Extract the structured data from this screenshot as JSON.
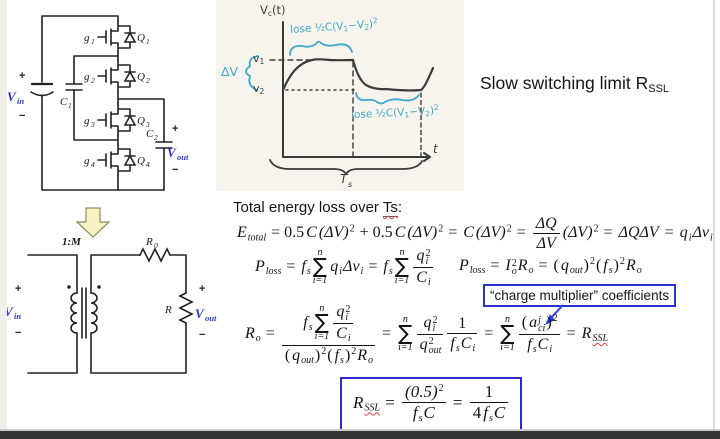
{
  "slide": {
    "title": {
      "text": "Slow switching limit ",
      "r": "R",
      "sub": "SSL"
    },
    "heading": {
      "pre": "Total energy loss over ",
      "ts": "Ts",
      "colon": ":"
    },
    "charge_box_label": "“charge multiplier” coefficients"
  },
  "sym": {
    "plus": "+",
    "minus": "−",
    "v": "V",
    "in": "in",
    "out": "out"
  },
  "sc": {
    "g": "g",
    "q": "Q",
    "c": "C",
    "n": [
      "1",
      "2",
      "3",
      "4"
    ]
  },
  "model": {
    "ratio": "1:M",
    "r": "R",
    "r0sub": "0",
    "rload": "R"
  },
  "sketch": {
    "vc_v": "V",
    "vc_sub": "c",
    "vc_rest": "(t)",
    "v": "v",
    "n1": "1",
    "n2": "2",
    "dv": "ΔV",
    "lose_pre": "lose ½C(V",
    "lose_mid": "−V",
    "lose_close": ")",
    "lose_sup": "2",
    "ts": "T",
    "ts_sub": "s",
    "t": "t"
  },
  "equations": {
    "eq_total": [
      {
        "k": "sb",
        "b": "E",
        "s": "total"
      },
      {
        "k": "r",
        "v": " = 0.5"
      },
      {
        "k": "i",
        "v": "C"
      },
      {
        "k": "sp",
        "b": "(ΔV)",
        "s": "2"
      },
      {
        "k": "r",
        "v": " + 0.5"
      },
      {
        "k": "i",
        "v": "C"
      },
      {
        "k": "sp",
        "b": "(ΔV)",
        "s": "2"
      },
      {
        "k": "r",
        "v": " = "
      },
      {
        "k": "i",
        "v": "C"
      },
      {
        "k": "sp",
        "b": "(ΔV)",
        "s": "2"
      },
      {
        "k": "r",
        "v": " = "
      },
      {
        "k": "f",
        "n": [
          {
            "k": "i",
            "v": "ΔQ"
          }
        ],
        "d": [
          {
            "k": "i",
            "v": "ΔV"
          }
        ]
      },
      {
        "k": "sp",
        "b": "(ΔV)",
        "s": "2"
      },
      {
        "k": "r",
        "v": " = "
      },
      {
        "k": "i",
        "v": "ΔQΔV"
      },
      {
        "k": "r",
        "v": " = "
      },
      {
        "k": "sb",
        "b": "q",
        "s": "i"
      },
      {
        "k": "sb",
        "b": "Δv",
        "s": "i"
      }
    ],
    "eq_ploss_a": [
      {
        "k": "sb",
        "b": "P",
        "s": "loss"
      },
      {
        "k": "r",
        "v": " = "
      },
      {
        "k": "sb",
        "b": "f",
        "s": "s"
      },
      {
        "k": "sum",
        "t": "n",
        "b": "i=1"
      },
      {
        "k": "sb",
        "b": "q",
        "s": "i"
      },
      {
        "k": "sb",
        "b": "Δv",
        "s": "i"
      },
      {
        "k": "r",
        "v": " = "
      },
      {
        "k": "sb",
        "b": "f",
        "s": "s"
      },
      {
        "k": "sum",
        "t": "n",
        "b": "i=1"
      },
      {
        "k": "f",
        "n": [
          {
            "k": "bs",
            "b": "q",
            "sub": "i",
            "sup": "2"
          }
        ],
        "d": [
          {
            "k": "sb",
            "b": "C",
            "s": "i"
          }
        ]
      }
    ],
    "eq_ploss_b": [
      {
        "k": "sb",
        "b": "P",
        "s": "loss"
      },
      {
        "k": "r",
        "v": " = "
      },
      {
        "k": "bs",
        "b": "I",
        "sub": "o",
        "sup": "2"
      },
      {
        "k": "sb",
        "b": "R",
        "s": "o"
      },
      {
        "k": "r",
        "v": " = "
      },
      {
        "k": "g",
        "b": [
          {
            "k": "r",
            "v": "("
          },
          {
            "k": "sb",
            "b": "q",
            "s": "out"
          },
          {
            "k": "r",
            "v": ")"
          }
        ],
        "s": "2"
      },
      {
        "k": "g",
        "b": [
          {
            "k": "r",
            "v": "("
          },
          {
            "k": "sb",
            "b": "f",
            "s": "s"
          },
          {
            "k": "r",
            "v": ")"
          }
        ],
        "s": "2"
      },
      {
        "k": "sb",
        "b": "R",
        "s": "o"
      }
    ],
    "eq_ro": [
      {
        "k": "sb",
        "b": "R",
        "s": "o"
      },
      {
        "k": "r",
        "v": " = "
      },
      {
        "k": "f",
        "n": [
          {
            "k": "sb",
            "b": "f",
            "s": "s"
          },
          {
            "k": "sum",
            "t": "n",
            "b": "i=1"
          },
          {
            "k": "f",
            "n": [
              {
                "k": "bs",
                "b": "q",
                "sub": "i",
                "sup": "2"
              }
            ],
            "d": [
              {
                "k": "sb",
                "b": "C",
                "s": "i"
              }
            ]
          }
        ],
        "d": [
          {
            "k": "g",
            "b": [
              {
                "k": "r",
                "v": "("
              },
              {
                "k": "sb",
                "b": "q",
                "s": "out"
              },
              {
                "k": "r",
                "v": ")"
              }
            ],
            "s": "2"
          },
          {
            "k": "g",
            "b": [
              {
                "k": "r",
                "v": "("
              },
              {
                "k": "sb",
                "b": "f",
                "s": "s"
              },
              {
                "k": "r",
                "v": ")"
              }
            ],
            "s": "2"
          },
          {
            "k": "sb",
            "b": "R",
            "s": "o"
          }
        ]
      },
      {
        "k": "r",
        "v": " = "
      },
      {
        "k": "sum",
        "t": "n",
        "b": "i=1"
      },
      {
        "k": "f",
        "n": [
          {
            "k": "bs",
            "b": "q",
            "sub": "i",
            "sup": "2"
          }
        ],
        "d": [
          {
            "k": "bs",
            "b": "q",
            "sub": "out",
            "sup": "2"
          }
        ]
      },
      {
        "k": "f",
        "n": [
          {
            "k": "r",
            "v": "1"
          }
        ],
        "d": [
          {
            "k": "sb",
            "b": "f",
            "s": "s"
          },
          {
            "k": "sb",
            "b": "C",
            "s": "i"
          }
        ]
      },
      {
        "k": "r",
        "v": " = "
      },
      {
        "k": "sum",
        "t": "n",
        "b": "i=1"
      },
      {
        "k": "f",
        "n": [
          {
            "k": "g",
            "b": [
              {
                "k": "r",
                "v": "("
              },
              {
                "k": "bs",
                "b": "a",
                "sub": "ci",
                "sup": "j"
              },
              {
                "k": "r",
                "v": ")"
              }
            ],
            "s": "2"
          }
        ],
        "d": [
          {
            "k": "sb",
            "b": "f",
            "s": "s"
          },
          {
            "k": "sb",
            "b": "C",
            "s": "i"
          }
        ]
      },
      {
        "k": "r",
        "v": " = "
      },
      {
        "k": "sb",
        "b": "R",
        "s": "SSL",
        "w": true
      }
    ],
    "eq_rssl": [
      {
        "k": "sb",
        "b": "R",
        "s": "SSL",
        "w": true
      },
      {
        "k": "r",
        "v": " = "
      },
      {
        "k": "f",
        "n": [
          {
            "k": "sp",
            "b": "(0.5)",
            "s": "2"
          }
        ],
        "d": [
          {
            "k": "sb",
            "b": "f",
            "s": "s"
          },
          {
            "k": "i",
            "v": "C"
          }
        ]
      },
      {
        "k": "r",
        "v": " = "
      },
      {
        "k": "f",
        "n": [
          {
            "k": "r",
            "v": "1"
          }
        ],
        "d": [
          {
            "k": "r",
            "v": "4"
          },
          {
            "k": "sb",
            "b": "f",
            "s": "s"
          },
          {
            "k": "i",
            "v": "C"
          }
        ]
      }
    ]
  },
  "colors": {
    "accent_blue": "#2a35d0",
    "box_blue": "#2633cc",
    "ink": "#3b3b3b",
    "ink_blue": "#3fa9c9",
    "panel_bg": "#f7f4ee",
    "arrow_fill": "#f8f3c3"
  }
}
